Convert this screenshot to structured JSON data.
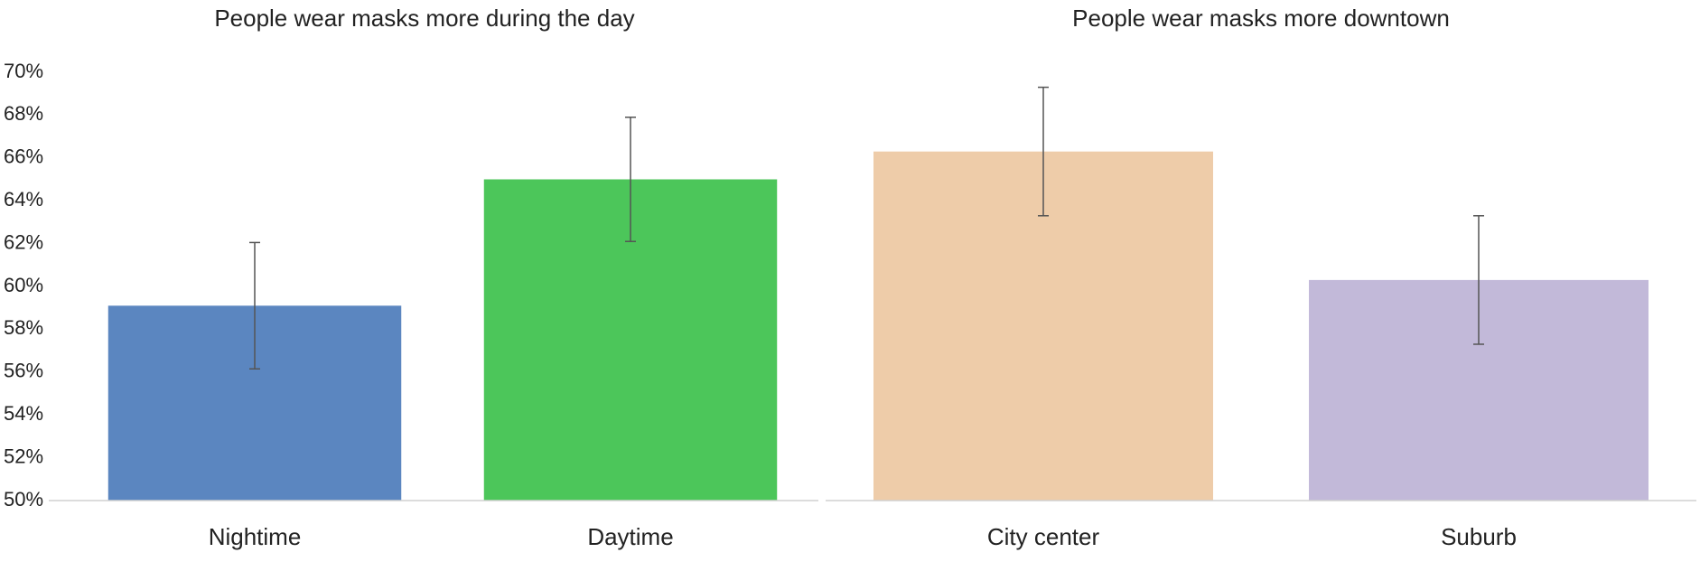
{
  "chart_data": [
    {
      "type": "bar",
      "title": "People wear masks more during the day",
      "categories": [
        "Nightime",
        "Daytime"
      ],
      "values": [
        59.1,
        65.0
      ],
      "errors": [
        2.95,
        2.9
      ],
      "colors": [
        "#5b86c0",
        "#4cc65a"
      ],
      "ylim": [
        50,
        70
      ],
      "yticks": [
        {
          "value": 50,
          "label": "50%"
        },
        {
          "value": 52,
          "label": "52%"
        },
        {
          "value": 54,
          "label": "54%"
        },
        {
          "value": 56,
          "label": "56%"
        },
        {
          "value": 58,
          "label": "58%"
        },
        {
          "value": 60,
          "label": "60%"
        },
        {
          "value": 62,
          "label": "62%"
        },
        {
          "value": 64,
          "label": "64%"
        },
        {
          "value": 66,
          "label": "66%"
        },
        {
          "value": 68,
          "label": "68%"
        },
        {
          "value": 70,
          "label": "70%"
        }
      ]
    },
    {
      "type": "bar",
      "title": "People wear masks more downtown",
      "categories": [
        "City center",
        "Suburb"
      ],
      "values": [
        66.3,
        60.3
      ],
      "errors": [
        3.0,
        3.0
      ],
      "colors": [
        "#eecca9",
        "#c2b9d9"
      ],
      "ylim": [
        50,
        70
      ]
    }
  ]
}
